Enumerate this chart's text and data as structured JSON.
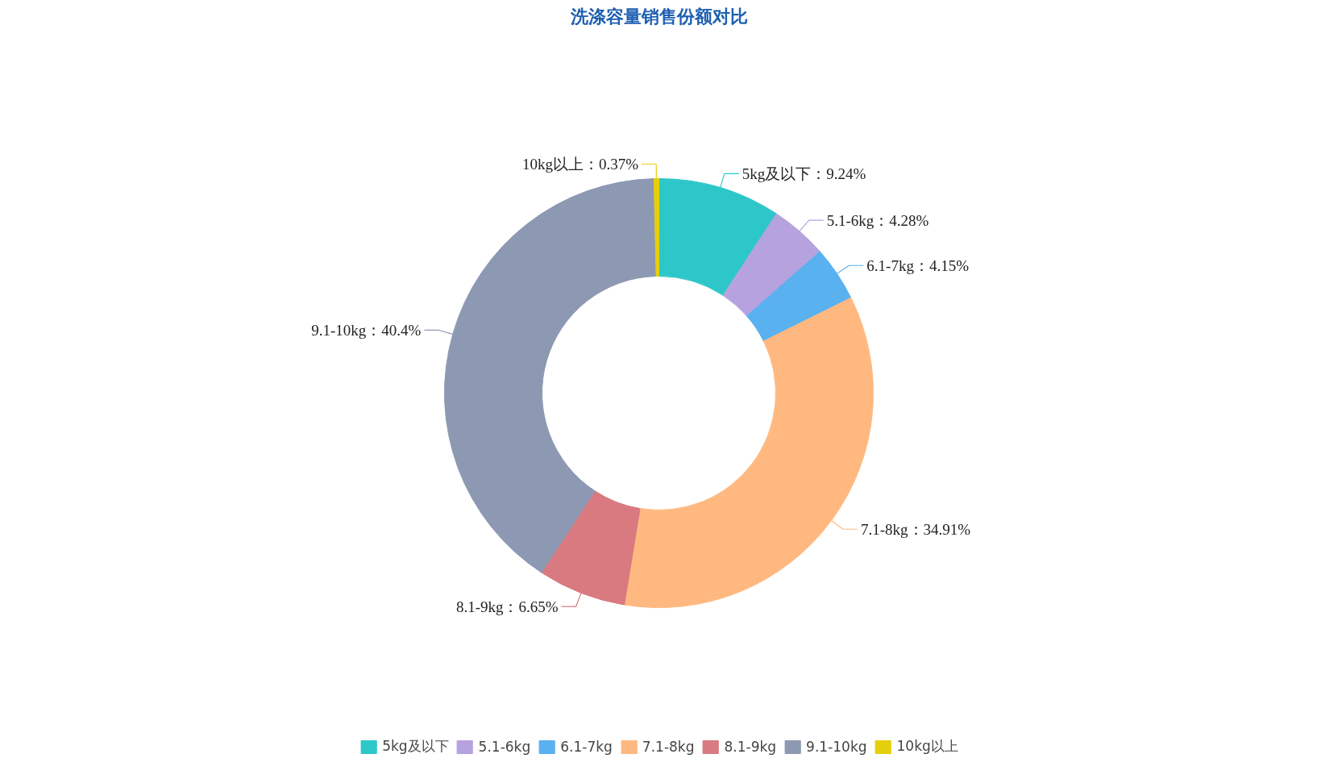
{
  "chart_data": {
    "type": "donut",
    "title": "洗涤容量销售份额对比",
    "categories": [
      "5kg及以下",
      "5.1-6kg",
      "6.1-7kg",
      "7.1-8kg",
      "8.1-9kg",
      "9.1-10kg",
      "10kg以上"
    ],
    "values": [
      9.24,
      4.28,
      4.15,
      34.91,
      6.65,
      40.4,
      0.37
    ],
    "colors": [
      "#2ec7c9",
      "#b6a2de",
      "#5ab1ef",
      "#ffb980",
      "#d87a80",
      "#8d98b3",
      "#e5cf0d"
    ],
    "value_labels": [
      "5kg及以下：9.24%",
      "5.1-6kg：4.28%",
      "6.1-7kg：4.15%",
      "7.1-8kg：34.91%",
      "8.1-9kg：6.65%",
      "9.1-10kg：40.4%",
      "10kg以上：0.37%"
    ],
    "legend": "bottom"
  }
}
